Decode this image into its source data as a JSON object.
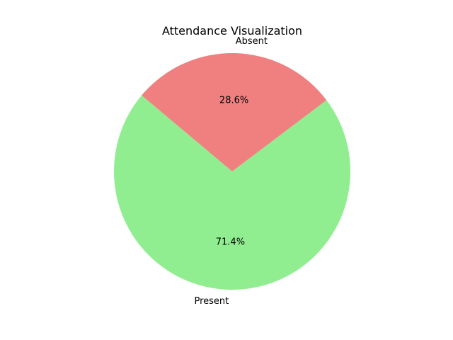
{
  "chart_data": {
    "type": "pie",
    "title": "Attendance Visualization",
    "categories": [
      "Present",
      "Absent"
    ],
    "values": [
      71.4,
      28.6
    ],
    "percent_labels": [
      "71.4%",
      "28.6%"
    ],
    "colors": [
      "#90ee90",
      "#f08080"
    ],
    "start_angle_deg": 140,
    "legend": "none"
  }
}
